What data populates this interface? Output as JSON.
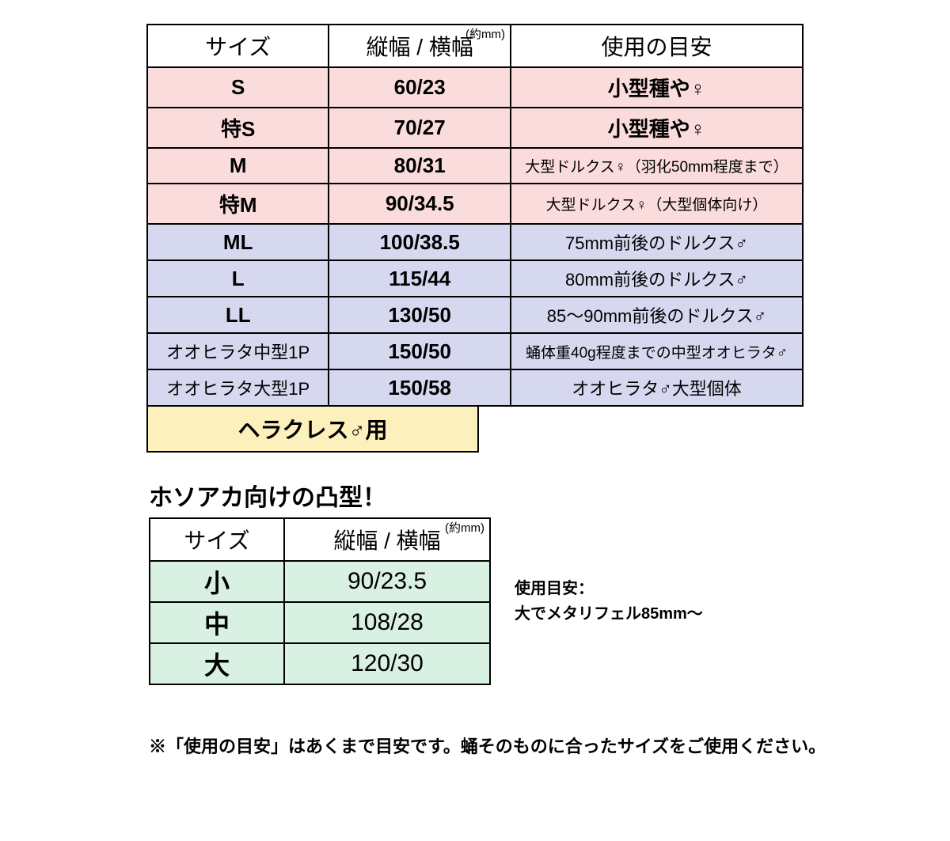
{
  "table1": {
    "headers": {
      "size": "サイズ",
      "dim": "縦幅 / 横幅",
      "dim_sup": "(約mm)",
      "usage": "使用の目安"
    },
    "rows": [
      {
        "size": "S",
        "dim": "60/23",
        "usage": "小型種や♀",
        "usage_class": "",
        "group": "pink"
      },
      {
        "size": "特S",
        "dim": "70/27",
        "usage": "小型種や♀",
        "usage_class": "",
        "group": "pink"
      },
      {
        "size": "M",
        "dim": "80/31",
        "usage": "大型ドルクス♀（羽化50mm程度まで）",
        "usage_class": "small",
        "group": "pink"
      },
      {
        "size": "特M",
        "dim": "90/34.5",
        "usage": "大型ドルクス♀（大型個体向け）",
        "usage_class": "small",
        "group": "pink"
      },
      {
        "size": "ML",
        "dim": "100/38.5",
        "usage": "75mm前後のドルクス♂",
        "usage_class": "med",
        "group": "blue"
      },
      {
        "size": "L",
        "dim": "115/44",
        "usage": "80mm前後のドルクス♂",
        "usage_class": "med",
        "group": "blue"
      },
      {
        "size": "LL",
        "dim": "130/50",
        "usage": "85〜90mm前後のドルクス♂",
        "usage_class": "med",
        "group": "blue"
      },
      {
        "size": "オオヒラタ中型1P",
        "dim": "150/50",
        "usage": "蛹体重40g程度までの中型オオヒラタ♂",
        "usage_class": "small",
        "group": "blue",
        "size_class": "med"
      },
      {
        "size": "オオヒラタ大型1P",
        "dim": "150/58",
        "usage": "オオヒラタ♂大型個体",
        "usage_class": "med",
        "group": "blue",
        "size_class": "med"
      }
    ],
    "colors": {
      "pink": "#fadcdc",
      "blue": "#d6d8f0",
      "border": "#000000",
      "header_bg": "#ffffff"
    }
  },
  "hercules_label": "ヘラクレス♂用",
  "hercules_bg": "#fcf0bc",
  "title2": "ホソアカ向けの凸型！",
  "table2": {
    "headers": {
      "size": "サイズ",
      "dim": "縦幅 / 横幅",
      "dim_sup": "(約mm)"
    },
    "rows": [
      {
        "size": "小",
        "dim": "90/23.5"
      },
      {
        "size": "中",
        "dim": "108/28"
      },
      {
        "size": "大",
        "dim": "120/30"
      }
    ],
    "row_bg": "#d9f1e3"
  },
  "sidenote": {
    "line1": "使用目安：",
    "line2": "大でメタリフェル85mm〜"
  },
  "footer": "※「使用の目安」はあくまで目安です。蛹そのものに合ったサイズをご使用ください。"
}
